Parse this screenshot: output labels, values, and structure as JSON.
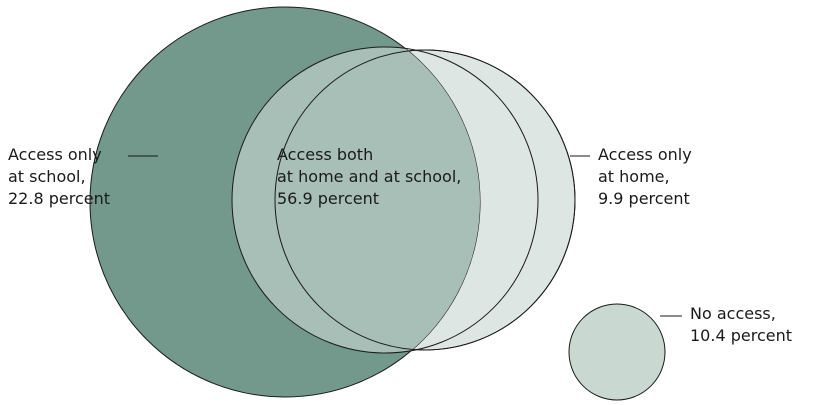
{
  "regions": [
    {
      "id": "school_only",
      "lines": [
        "Access only",
        "at school,",
        "22.8 percent"
      ],
      "value": 22.8,
      "color": "#73998d"
    },
    {
      "id": "both",
      "lines": [
        "Access both",
        "at home and at school,",
        "56.9 percent"
      ],
      "value": 56.9,
      "color": "#a8bfb7"
    },
    {
      "id": "home_only",
      "lines": [
        "Access only",
        "at home,",
        "9.9 percent"
      ],
      "value": 9.9,
      "color": "#dde6e2"
    },
    {
      "id": "no_access",
      "lines": [
        "No access,",
        "10.4 percent"
      ],
      "value": 10.4,
      "color": "#c9d9d2"
    }
  ],
  "unit": "percent",
  "outline_color": "#1a1a1a"
}
